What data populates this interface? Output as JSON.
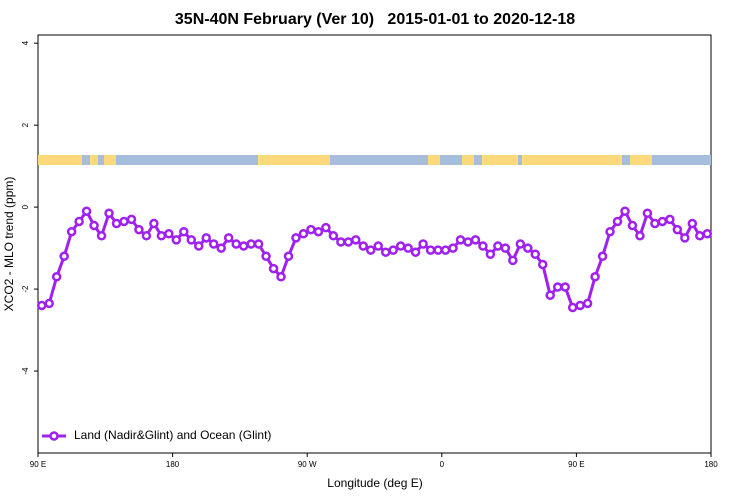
{
  "chart_data": {
    "type": "line",
    "title": "35N-40N February (Ver 10)   2015-01-01 to 2020-12-18",
    "x_label": "Longitude (deg E)",
    "y_label": "XCO2 - MLO trend (ppm)",
    "xlim": [
      90,
      540
    ],
    "ylim": [
      -6,
      4.2
    ],
    "xticks": [
      {
        "value": 90,
        "label": "90 E"
      },
      180,
      {
        "value": 270,
        "label": "90 W"
      },
      {
        "value": 360,
        "label": "0"
      },
      {
        "value": 450,
        "label": "90 E"
      },
      {
        "value": 540,
        "label": "180"
      }
    ],
    "yticks": [
      -4,
      -2,
      0,
      2,
      4
    ],
    "grid": false,
    "legend_position": "bottom-left",
    "x": [
      92.5,
      97.5,
      102.5,
      107.5,
      112.5,
      117.5,
      122.5,
      127.5,
      132.5,
      137.5,
      142.5,
      147.5,
      152.5,
      157.5,
      162.5,
      167.5,
      172.5,
      177.5,
      182.5,
      187.5,
      192.5,
      197.5,
      202.5,
      207.5,
      212.5,
      217.5,
      222.5,
      227.5,
      232.5,
      237.5,
      242.5,
      247.5,
      252.5,
      257.5,
      262.5,
      267.5,
      272.5,
      277.5,
      282.5,
      287.5,
      292.5,
      297.5,
      302.5,
      307.5,
      312.5,
      317.5,
      322.5,
      327.5,
      332.5,
      337.5,
      342.5,
      347.5,
      352.5,
      357.5,
      362.5,
      367.5,
      372.5,
      377.5,
      382.5,
      387.5,
      392.5,
      397.5,
      402.5,
      407.5,
      412.5,
      417.5,
      422.5,
      427.5,
      432.5,
      437.5,
      442.5,
      447.5,
      452.5,
      457.5,
      462.5,
      467.5,
      472.5,
      477.5,
      482.5,
      487.5,
      492.5,
      497.5,
      502.5,
      507.5,
      512.5,
      517.5,
      522.5,
      527.5,
      532.5,
      537.5
    ],
    "series": [
      {
        "name": "Land (Nadir&Glint) and Ocean (Glint)",
        "color": "#a020f0",
        "values": [
          -2.4,
          -2.35,
          -1.7,
          -1.2,
          -0.6,
          -0.35,
          -0.1,
          -0.45,
          -0.7,
          -0.15,
          -0.4,
          -0.35,
          -0.3,
          -0.55,
          -0.7,
          -0.4,
          -0.7,
          -0.65,
          -0.8,
          -0.6,
          -0.8,
          -0.95,
          -0.75,
          -0.9,
          -1.0,
          -0.75,
          -0.9,
          -0.95,
          -0.9,
          -0.9,
          -1.2,
          -1.5,
          -1.7,
          -1.2,
          -0.75,
          -0.65,
          -0.55,
          -0.6,
          -0.5,
          -0.7,
          -0.85,
          -0.85,
          -0.8,
          -0.95,
          -1.05,
          -0.95,
          -1.1,
          -1.05,
          -0.95,
          -1.0,
          -1.1,
          -0.9,
          -1.05,
          -1.05,
          -1.05,
          -1.0,
          -0.8,
          -0.85,
          -0.8,
          -0.95,
          -1.15,
          -0.95,
          -1.0,
          -1.3,
          -0.9,
          -1.0,
          -1.15,
          -1.4,
          -2.15,
          -1.95,
          -1.95,
          -2.45,
          -2.4,
          -2.35,
          -1.7,
          -1.2,
          -0.6,
          -0.35,
          -0.1,
          -0.45,
          -0.7,
          -0.15,
          -0.4,
          -0.35,
          -0.3,
          -0.55,
          -0.75,
          -0.4,
          -0.7,
          -0.65
        ]
      }
    ]
  }
}
